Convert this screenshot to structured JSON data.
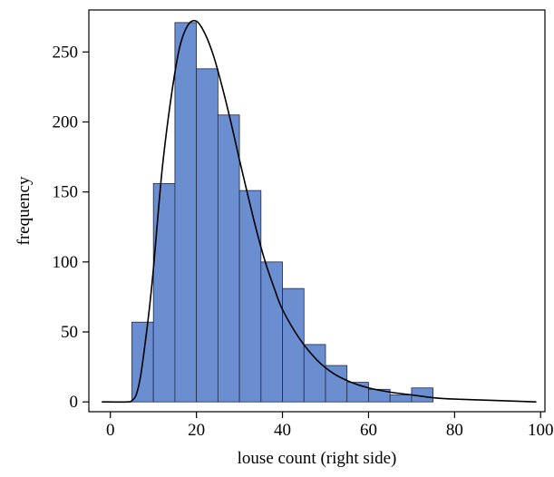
{
  "chart_data": {
    "type": "bar",
    "title": "",
    "xlabel": "louse count (right side)",
    "ylabel": "frequency",
    "xlim": [
      -5,
      101
    ],
    "ylim": [
      -7,
      280
    ],
    "x_ticks": [
      0,
      20,
      40,
      60,
      80,
      100
    ],
    "y_ticks": [
      0,
      50,
      100,
      150,
      200,
      250
    ],
    "grid": false,
    "bin_width": 5,
    "bins": [
      {
        "start": 5,
        "end": 10,
        "value": 57
      },
      {
        "start": 10,
        "end": 15,
        "value": 156
      },
      {
        "start": 15,
        "end": 20,
        "value": 271
      },
      {
        "start": 20,
        "end": 25,
        "value": 238
      },
      {
        "start": 25,
        "end": 30,
        "value": 205
      },
      {
        "start": 30,
        "end": 35,
        "value": 151
      },
      {
        "start": 35,
        "end": 40,
        "value": 100
      },
      {
        "start": 40,
        "end": 45,
        "value": 81
      },
      {
        "start": 45,
        "end": 50,
        "value": 41
      },
      {
        "start": 50,
        "end": 55,
        "value": 26
      },
      {
        "start": 55,
        "end": 60,
        "value": 14
      },
      {
        "start": 60,
        "end": 65,
        "value": 9
      },
      {
        "start": 65,
        "end": 70,
        "value": 5
      },
      {
        "start": 70,
        "end": 75,
        "value": 10
      }
    ],
    "fitted_curve": {
      "x": [
        -2,
        4,
        5,
        6,
        7,
        8,
        9,
        10,
        12,
        14,
        16,
        18,
        20,
        22,
        24,
        26,
        28,
        30,
        32,
        34,
        36,
        38,
        40,
        44,
        48,
        52,
        56,
        60,
        65,
        70,
        75,
        80,
        90,
        99
      ],
      "y": [
        0,
        0,
        1,
        5,
        18,
        40,
        65,
        95,
        165,
        215,
        252,
        269,
        272,
        263,
        247,
        225,
        200,
        173,
        147,
        122,
        100,
        82,
        66,
        45,
        30,
        20,
        14,
        10,
        7,
        5,
        3,
        2,
        1,
        0
      ]
    },
    "colors": {
      "bar_fill": "#6A8ED0",
      "bar_stroke": "#1e2a4a",
      "curve": "#000000"
    }
  }
}
